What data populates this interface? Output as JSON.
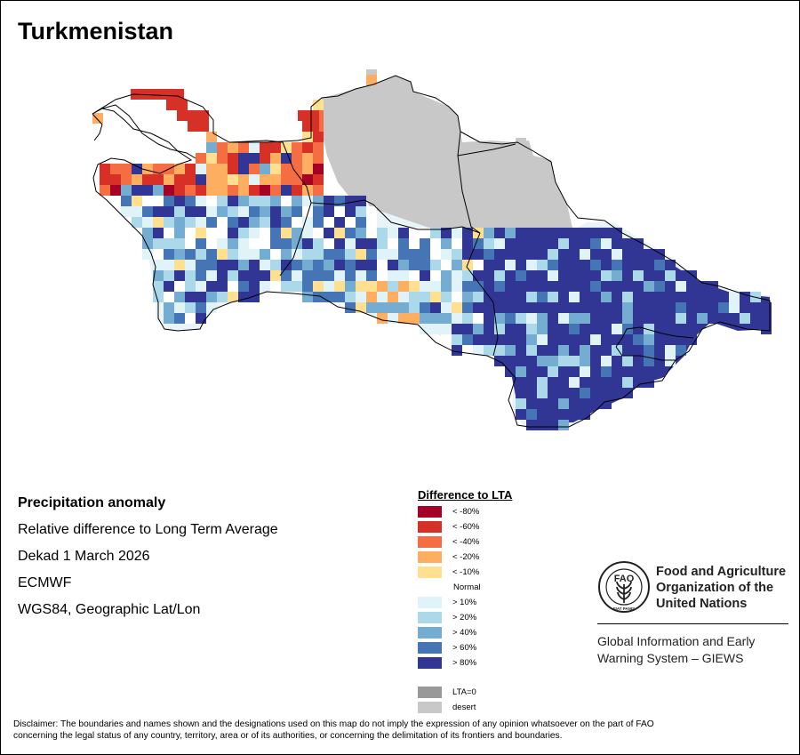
{
  "map": {
    "title": "Turkmenistan",
    "description": {
      "heading": "Precipitation anomaly",
      "subtitle": "Relative difference to Long Term Average",
      "period": "Dekad 1 March 2026",
      "source": "ECMWF",
      "projection": "WGS84, Geographic Lat/Lon"
    }
  },
  "legend": {
    "title": "Difference to LTA",
    "classes": [
      {
        "label": "< -80%",
        "color": "#a50026"
      },
      {
        "label": "< -60%",
        "color": "#d73027"
      },
      {
        "label": "< -40%",
        "color": "#f46d43"
      },
      {
        "label": "< -20%",
        "color": "#fdae61"
      },
      {
        "label": "< -10%",
        "color": "#fee090"
      },
      {
        "label": "Normal",
        "color": "#ffffff"
      },
      {
        "label": "> 10%",
        "color": "#e0f3f8"
      },
      {
        "label": "> 20%",
        "color": "#abd9e9"
      },
      {
        "label": "> 40%",
        "color": "#74add1"
      },
      {
        "label": "> 60%",
        "color": "#4575b4"
      },
      {
        "label": "> 80%",
        "color": "#313695"
      }
    ],
    "extra": [
      {
        "label": "LTA=0",
        "color": "#999999"
      },
      {
        "label": "desert",
        "color": "#c8c8c8"
      }
    ]
  },
  "organization": {
    "line1": "Food and Agriculture",
    "line2": "Organization of the",
    "line3": "United Nations",
    "logo_text": "FAO",
    "logo_motto": "FIAT PANIS",
    "system_line1": "Global Information and Early",
    "system_line2": "Warning System – GIEWS"
  },
  "disclaimer": {
    "line1": "Disclaimer: The boundaries and names shown and the designations used on this map do not imply the expression of any opinion whatsoever on the part of FAO",
    "line2": "concerning the legal status of any country, territory, area or of its authorities, or concerning the delimitation of its frontiers and boundaries."
  }
}
